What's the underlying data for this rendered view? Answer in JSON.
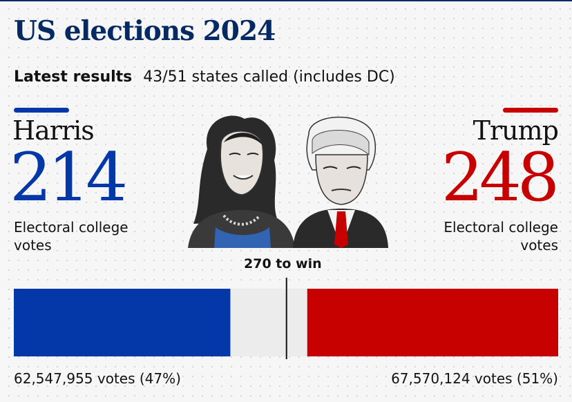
{
  "header": {
    "title": "US elections 2024",
    "latest_label": "Latest results",
    "states_called": "43/51 states called (includes DC)"
  },
  "colors": {
    "harris": "#0437a8",
    "trump": "#c70000",
    "background": "#f6f6f6",
    "uncalled": "#ececec",
    "title": "#052962"
  },
  "candidates": {
    "harris": {
      "name": "Harris",
      "ev_display": "214",
      "ev_label": "Electoral college votes",
      "votes_text": "62,547,955 votes (47%)"
    },
    "trump": {
      "name": "Trump",
      "ev_display": "248",
      "ev_label": "Electoral college votes",
      "votes_text": "67,570,124 votes (51%)"
    }
  },
  "chart_data": {
    "type": "bar",
    "orientation": "horizontal-stacked",
    "total": 538,
    "threshold": 270,
    "threshold_label": "270 to win",
    "series": [
      {
        "name": "Harris",
        "value": 214,
        "votes": 62547955,
        "vote_share_pct": 47
      },
      {
        "name": "Trump",
        "value": 248,
        "votes": 67570124,
        "vote_share_pct": 51
      }
    ],
    "uncalled": 76
  }
}
